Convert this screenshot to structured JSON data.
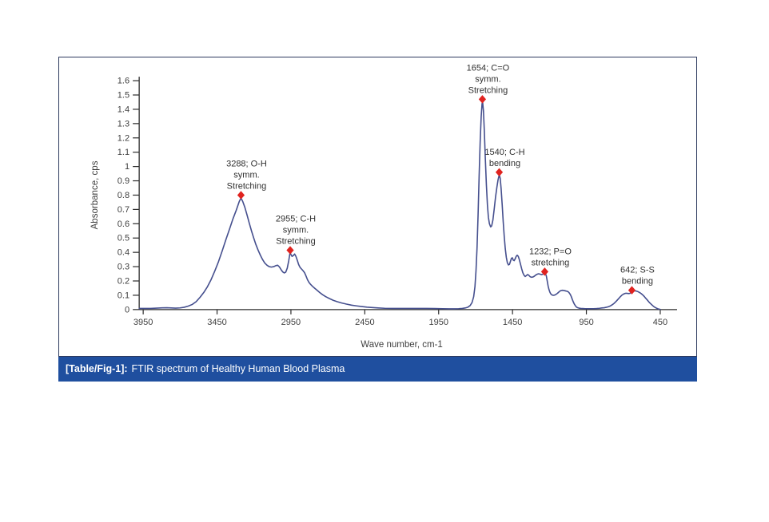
{
  "figure": {
    "caption_label": "[Table/Fig-1]:",
    "caption_text": "FTIR spectrum of Healthy Human Blood Plasma"
  },
  "colors": {
    "line": "#454f8e",
    "marker": "#e0231f",
    "axis": "#2b2b2b",
    "tick_text": "#3f3f3f",
    "annotation_text": "#2f2f2f",
    "caption_bg": "#1f4f9f",
    "border": "#2d3a5e"
  },
  "chart_data": {
    "type": "line",
    "title": "",
    "xlabel": "Wave number, cm-1",
    "ylabel": "Absorbance, cps",
    "xlim": [
      3950,
      450
    ],
    "ylim": [
      0,
      1.6
    ],
    "x_axis_reversed": true,
    "grid": false,
    "legend": "none",
    "x_ticks": [
      3950,
      3450,
      2950,
      2450,
      1950,
      1450,
      950,
      450
    ],
    "y_ticks": [
      {
        "v": 1.6,
        "label": "1.6"
      },
      {
        "v": 1.5,
        "label": "1.5"
      },
      {
        "v": 1.4,
        "label": "1.4"
      },
      {
        "v": 1.3,
        "label": "1.3"
      },
      {
        "v": 1.2,
        "label": "1.2"
      },
      {
        "v": 1.1,
        "label": "1.1"
      },
      {
        "v": 1.0,
        "label": "1"
      },
      {
        "v": 0.9,
        "label": "0.9"
      },
      {
        "v": 0.8,
        "label": "0.8"
      },
      {
        "v": 0.7,
        "label": "0.7"
      },
      {
        "v": 0.6,
        "label": "0.6"
      },
      {
        "v": 0.5,
        "label": "0.5"
      },
      {
        "v": 0.4,
        "label": "0.4"
      },
      {
        "v": 0.3,
        "label": "0.3"
      },
      {
        "v": 0.2,
        "label": "0.2"
      },
      {
        "v": 0.1,
        "label": "0.1"
      },
      {
        "v": 0.0,
        "label": "0"
      }
    ],
    "series": [
      {
        "name": "FTIR absorbance of healthy human blood plasma",
        "points": [
          [
            3977,
            0.008
          ],
          [
            3940,
            0.008
          ],
          [
            3900,
            0.008
          ],
          [
            3860,
            0.01
          ],
          [
            3820,
            0.012
          ],
          [
            3790,
            0.013
          ],
          [
            3760,
            0.011
          ],
          [
            3730,
            0.01
          ],
          [
            3700,
            0.012
          ],
          [
            3672,
            0.016
          ],
          [
            3645,
            0.024
          ],
          [
            3618,
            0.036
          ],
          [
            3592,
            0.055
          ],
          [
            3566,
            0.085
          ],
          [
            3540,
            0.12
          ],
          [
            3515,
            0.16
          ],
          [
            3490,
            0.21
          ],
          [
            3465,
            0.27
          ],
          [
            3440,
            0.335
          ],
          [
            3415,
            0.41
          ],
          [
            3390,
            0.49
          ],
          [
            3365,
            0.565
          ],
          [
            3342,
            0.635
          ],
          [
            3320,
            0.695
          ],
          [
            3300,
            0.755
          ],
          [
            3288,
            0.78
          ],
          [
            3276,
            0.755
          ],
          [
            3262,
            0.715
          ],
          [
            3247,
            0.66
          ],
          [
            3232,
            0.605
          ],
          [
            3217,
            0.55
          ],
          [
            3202,
            0.5
          ],
          [
            3187,
            0.455
          ],
          [
            3172,
            0.415
          ],
          [
            3157,
            0.38
          ],
          [
            3142,
            0.35
          ],
          [
            3127,
            0.325
          ],
          [
            3112,
            0.31
          ],
          [
            3097,
            0.3
          ],
          [
            3082,
            0.297
          ],
          [
            3067,
            0.3
          ],
          [
            3052,
            0.307
          ],
          [
            3040,
            0.31
          ],
          [
            3028,
            0.298
          ],
          [
            3016,
            0.278
          ],
          [
            3005,
            0.263
          ],
          [
            2995,
            0.256
          ],
          [
            2985,
            0.262
          ],
          [
            2975,
            0.29
          ],
          [
            2965,
            0.34
          ],
          [
            2958,
            0.385
          ],
          [
            2955,
            0.4
          ],
          [
            2950,
            0.385
          ],
          [
            2942,
            0.372
          ],
          [
            2933,
            0.378
          ],
          [
            2925,
            0.388
          ],
          [
            2916,
            0.372
          ],
          [
            2907,
            0.345
          ],
          [
            2898,
            0.315
          ],
          [
            2888,
            0.295
          ],
          [
            2878,
            0.283
          ],
          [
            2868,
            0.272
          ],
          [
            2858,
            0.258
          ],
          [
            2848,
            0.235
          ],
          [
            2838,
            0.21
          ],
          [
            2828,
            0.19
          ],
          [
            2816,
            0.175
          ],
          [
            2804,
            0.163
          ],
          [
            2790,
            0.15
          ],
          [
            2774,
            0.136
          ],
          [
            2756,
            0.12
          ],
          [
            2736,
            0.104
          ],
          [
            2714,
            0.09
          ],
          [
            2690,
            0.077
          ],
          [
            2664,
            0.065
          ],
          [
            2636,
            0.055
          ],
          [
            2606,
            0.046
          ],
          [
            2574,
            0.038
          ],
          [
            2540,
            0.031
          ],
          [
            2505,
            0.026
          ],
          [
            2470,
            0.021
          ],
          [
            2435,
            0.017
          ],
          [
            2400,
            0.014
          ],
          [
            2360,
            0.011
          ],
          [
            2315,
            0.009
          ],
          [
            2265,
            0.008
          ],
          [
            2210,
            0.008
          ],
          [
            2150,
            0.008
          ],
          [
            2090,
            0.008
          ],
          [
            2030,
            0.008
          ],
          [
            1975,
            0.007
          ],
          [
            1925,
            0.006
          ],
          [
            1880,
            0.005
          ],
          [
            1845,
            0.005
          ],
          [
            1815,
            0.006
          ],
          [
            1790,
            0.008
          ],
          [
            1770,
            0.011
          ],
          [
            1752,
            0.017
          ],
          [
            1737,
            0.028
          ],
          [
            1724,
            0.05
          ],
          [
            1713,
            0.09
          ],
          [
            1704,
            0.16
          ],
          [
            1697,
            0.27
          ],
          [
            1690,
            0.43
          ],
          [
            1683,
            0.66
          ],
          [
            1676,
            0.93
          ],
          [
            1669,
            1.17
          ],
          [
            1662,
            1.35
          ],
          [
            1656,
            1.44
          ],
          [
            1652,
            1.45
          ],
          [
            1647,
            1.39
          ],
          [
            1641,
            1.25
          ],
          [
            1634,
            1.05
          ],
          [
            1627,
            0.87
          ],
          [
            1620,
            0.73
          ],
          [
            1613,
            0.645
          ],
          [
            1606,
            0.6
          ],
          [
            1598,
            0.578
          ],
          [
            1591,
            0.585
          ],
          [
            1583,
            0.625
          ],
          [
            1574,
            0.7
          ],
          [
            1565,
            0.785
          ],
          [
            1556,
            0.855
          ],
          [
            1548,
            0.905
          ],
          [
            1542,
            0.932
          ],
          [
            1538,
            0.938
          ],
          [
            1533,
            0.915
          ],
          [
            1527,
            0.845
          ],
          [
            1520,
            0.735
          ],
          [
            1513,
            0.615
          ],
          [
            1506,
            0.51
          ],
          [
            1499,
            0.425
          ],
          [
            1492,
            0.365
          ],
          [
            1485,
            0.327
          ],
          [
            1478,
            0.312
          ],
          [
            1471,
            0.316
          ],
          [
            1464,
            0.336
          ],
          [
            1457,
            0.358
          ],
          [
            1451,
            0.362
          ],
          [
            1445,
            0.345
          ],
          [
            1439,
            0.342
          ],
          [
            1432,
            0.355
          ],
          [
            1425,
            0.372
          ],
          [
            1418,
            0.38
          ],
          [
            1411,
            0.372
          ],
          [
            1404,
            0.35
          ],
          [
            1396,
            0.318
          ],
          [
            1388,
            0.285
          ],
          [
            1380,
            0.258
          ],
          [
            1372,
            0.24
          ],
          [
            1364,
            0.231
          ],
          [
            1356,
            0.238
          ],
          [
            1348,
            0.245
          ],
          [
            1340,
            0.24
          ],
          [
            1331,
            0.23
          ],
          [
            1322,
            0.226
          ],
          [
            1313,
            0.227
          ],
          [
            1303,
            0.233
          ],
          [
            1293,
            0.241
          ],
          [
            1283,
            0.247
          ],
          [
            1273,
            0.25
          ],
          [
            1263,
            0.247
          ],
          [
            1253,
            0.244
          ],
          [
            1243,
            0.248
          ],
          [
            1237,
            0.252
          ],
          [
            1232,
            0.255
          ],
          [
            1227,
            0.252
          ],
          [
            1221,
            0.235
          ],
          [
            1215,
            0.2
          ],
          [
            1209,
            0.165
          ],
          [
            1203,
            0.14
          ],
          [
            1197,
            0.122
          ],
          [
            1191,
            0.11
          ],
          [
            1184,
            0.103
          ],
          [
            1177,
            0.1
          ],
          [
            1169,
            0.1
          ],
          [
            1161,
            0.103
          ],
          [
            1153,
            0.108
          ],
          [
            1145,
            0.114
          ],
          [
            1137,
            0.122
          ],
          [
            1129,
            0.129
          ],
          [
            1121,
            0.133
          ],
          [
            1113,
            0.135
          ],
          [
            1105,
            0.134
          ],
          [
            1097,
            0.132
          ],
          [
            1089,
            0.13
          ],
          [
            1081,
            0.128
          ],
          [
            1073,
            0.124
          ],
          [
            1066,
            0.117
          ],
          [
            1059,
            0.106
          ],
          [
            1052,
            0.09
          ],
          [
            1045,
            0.07
          ],
          [
            1038,
            0.052
          ],
          [
            1031,
            0.037
          ],
          [
            1024,
            0.026
          ],
          [
            1017,
            0.018
          ],
          [
            1009,
            0.013
          ],
          [
            1000,
            0.01
          ],
          [
            988,
            0.008
          ],
          [
            974,
            0.007
          ],
          [
            958,
            0.006
          ],
          [
            940,
            0.006
          ],
          [
            920,
            0.006
          ],
          [
            900,
            0.006
          ],
          [
            880,
            0.007
          ],
          [
            862,
            0.009
          ],
          [
            845,
            0.011
          ],
          [
            829,
            0.013
          ],
          [
            814,
            0.016
          ],
          [
            800,
            0.02
          ],
          [
            787,
            0.026
          ],
          [
            774,
            0.034
          ],
          [
            761,
            0.045
          ],
          [
            748,
            0.058
          ],
          [
            735,
            0.073
          ],
          [
            722,
            0.088
          ],
          [
            710,
            0.1
          ],
          [
            699,
            0.108
          ],
          [
            688,
            0.113
          ],
          [
            677,
            0.114
          ],
          [
            666,
            0.112
          ],
          [
            656,
            0.113
          ],
          [
            646,
            0.119
          ],
          [
            637,
            0.126
          ],
          [
            629,
            0.13
          ],
          [
            621,
            0.131
          ],
          [
            613,
            0.13
          ],
          [
            605,
            0.127
          ],
          [
            597,
            0.123
          ],
          [
            588,
            0.118
          ],
          [
            578,
            0.111
          ],
          [
            568,
            0.102
          ],
          [
            558,
            0.091
          ],
          [
            548,
            0.079
          ],
          [
            538,
            0.067
          ],
          [
            528,
            0.055
          ],
          [
            518,
            0.044
          ],
          [
            508,
            0.034
          ],
          [
            498,
            0.025
          ],
          [
            488,
            0.017
          ],
          [
            478,
            0.011
          ],
          [
            468,
            0.006
          ],
          [
            458,
            0.003
          ],
          [
            450,
            0.001
          ]
        ]
      }
    ],
    "peaks": [
      {
        "wavenumber": 3288,
        "absorbance": 0.8,
        "label_lines": [
          "3288; O-H",
          "symm.",
          "Stretching"
        ]
      },
      {
        "wavenumber": 2955,
        "absorbance": 0.415,
        "label_lines": [
          "2955; C-H",
          "symm.",
          "Stretching"
        ]
      },
      {
        "wavenumber": 1654,
        "absorbance": 1.47,
        "label_lines": [
          "1654; C=O",
          "symm.",
          "Stretching"
        ]
      },
      {
        "wavenumber": 1540,
        "absorbance": 0.96,
        "label_lines": [
          "1540; C-H",
          "bending"
        ]
      },
      {
        "wavenumber": 1232,
        "absorbance": 0.265,
        "label_lines": [
          "1232; P=O",
          "stretching"
        ]
      },
      {
        "wavenumber": 642,
        "absorbance": 0.135,
        "label_lines": [
          "642; S-S",
          "bending"
        ]
      }
    ]
  }
}
